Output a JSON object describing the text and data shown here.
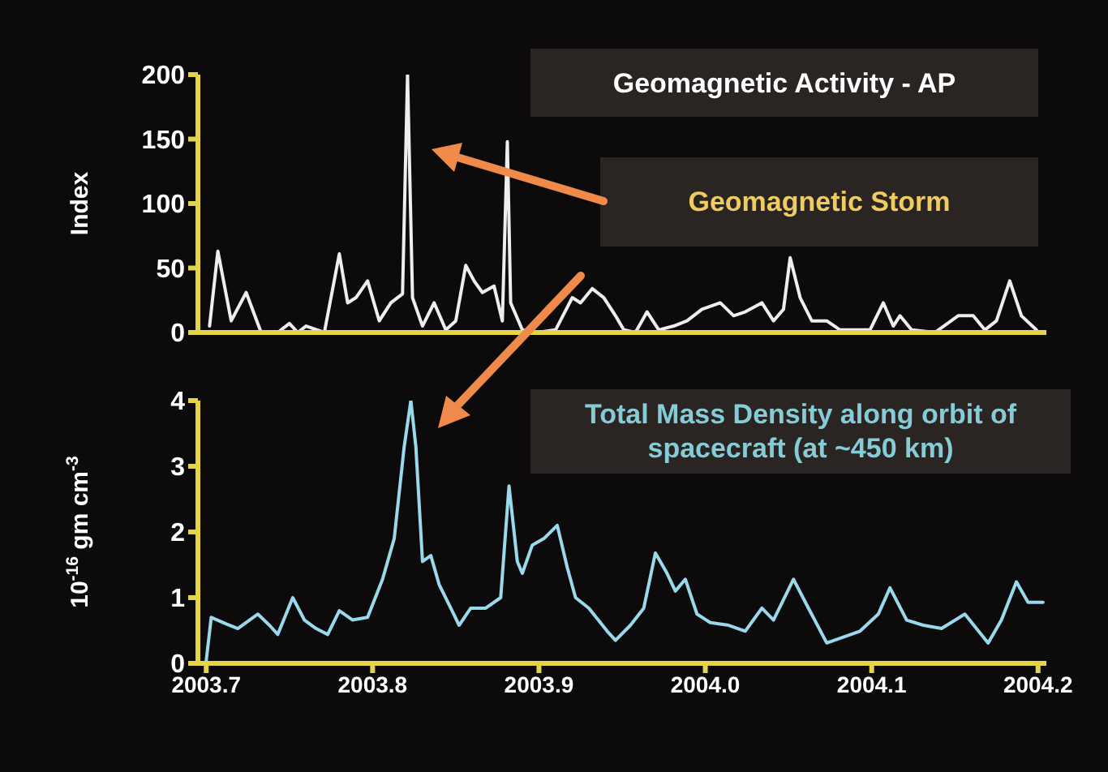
{
  "chart_data": [
    {
      "type": "line",
      "title": "Geomagnetic Activity - AP",
      "ylabel": "Index",
      "annotations": [
        "Geomagnetic Storm"
      ],
      "xlim": [
        2003.695,
        2004.205
      ],
      "ylim": [
        0,
        200
      ],
      "yticks": [
        0,
        50,
        100,
        150,
        200
      ],
      "tick_labels": "y",
      "grid": false,
      "legend": false,
      "marker": "none",
      "line_style": "solid",
      "series": [
        {
          "color": "#eeeeee",
          "x": [
            2003.702,
            2003.707,
            2003.715,
            2003.724,
            2003.733,
            2003.743,
            2003.75,
            2003.755,
            2003.76,
            2003.771,
            2003.78,
            2003.785,
            2003.79,
            2003.797,
            2003.804,
            2003.811,
            2003.818,
            2003.821,
            2003.824,
            2003.83,
            2003.837,
            2003.844,
            2003.85,
            2003.856,
            2003.861,
            2003.866,
            2003.873,
            2003.878,
            2003.881,
            2003.883,
            2003.89,
            2003.899,
            2003.91,
            2003.92,
            2003.925,
            2003.932,
            2003.939,
            2003.946,
            2003.951,
            2003.958,
            2003.965,
            2003.972,
            2003.981,
            2003.989,
            2003.998,
            2004.009,
            2004.017,
            2004.024,
            2004.034,
            2004.041,
            2004.047,
            2004.051,
            2004.057,
            2004.064,
            2004.073,
            2004.081,
            2004.09,
            2004.099,
            2004.107,
            2004.113,
            2004.117,
            2004.124,
            2004.138,
            2004.152,
            2004.161,
            2004.168,
            2004.175,
            2004.183,
            2004.19,
            2004.199
          ],
          "values": [
            5,
            63,
            9,
            31,
            0,
            0,
            7,
            0,
            5,
            0,
            61,
            23,
            27,
            40,
            9,
            23,
            30,
            200,
            27,
            5,
            23,
            2,
            9,
            52,
            40,
            31,
            36,
            9,
            148,
            23,
            2,
            0,
            2,
            27,
            23,
            34,
            27,
            13,
            2,
            0,
            16,
            2,
            5,
            9,
            18,
            23,
            13,
            16,
            23,
            9,
            18,
            58,
            27,
            9,
            9,
            2,
            2,
            2,
            23,
            5,
            13,
            2,
            0,
            13,
            13,
            2,
            9,
            40,
            13,
            2
          ]
        }
      ]
    },
    {
      "type": "line",
      "title": "Total Mass Density along orbit of spacecraft (at ~450 km)",
      "ylabel": "10$^{-16}$ gm cm$^{-3}$",
      "xlim": [
        2003.695,
        2004.205
      ],
      "xticks": [
        2003.7,
        2003.8,
        2003.9,
        {
          "value": 2004,
          "label": "2004.0"
        },
        2004.1,
        2004.2
      ],
      "ylim": [
        0,
        4
      ],
      "yticks": [
        0,
        1,
        2,
        3,
        4
      ],
      "grid": false,
      "legend": false,
      "marker": "none",
      "line_style": "solid",
      "series": [
        {
          "color": "#9ad8ec",
          "x": [
            2003.7,
            2003.703,
            2003.712,
            2003.719,
            2003.731,
            2003.738,
            2003.743,
            2003.752,
            2003.759,
            2003.766,
            2003.773,
            2003.78,
            2003.788,
            2003.797,
            2003.806,
            2003.813,
            2003.819,
            2003.823,
            2003.826,
            2003.83,
            2003.835,
            2003.84,
            2003.847,
            2003.852,
            2003.859,
            2003.868,
            2003.877,
            2003.882,
            2003.887,
            2003.89,
            2003.896,
            2003.903,
            2003.911,
            2003.917,
            2003.922,
            2003.93,
            2003.941,
            2003.946,
            2003.955,
            2003.963,
            2003.97,
            2003.977,
            2003.982,
            2003.988,
            2003.995,
            2004.003,
            2004.014,
            2004.024,
            2004.034,
            2004.041,
            2004.053,
            2004.062,
            2004.073,
            2004.083,
            2004.093,
            2004.104,
            2004.111,
            2004.121,
            2004.131,
            2004.142,
            2004.156,
            2004.17,
            2004.178,
            2004.187,
            2004.194,
            2004.203
          ],
          "values": [
            0.04,
            0.7,
            0.6,
            0.53,
            0.75,
            0.58,
            0.44,
            1.0,
            0.66,
            0.53,
            0.44,
            0.8,
            0.66,
            0.7,
            1.28,
            1.9,
            3.3,
            4.0,
            3.3,
            1.55,
            1.64,
            1.2,
            0.84,
            0.58,
            0.84,
            0.84,
            1.0,
            2.7,
            1.55,
            1.37,
            1.8,
            1.9,
            2.1,
            1.46,
            1.0,
            0.84,
            0.49,
            0.35,
            0.58,
            0.84,
            1.68,
            1.37,
            1.1,
            1.28,
            0.75,
            0.62,
            0.58,
            0.49,
            0.84,
            0.66,
            1.28,
            0.84,
            0.31,
            0.4,
            0.49,
            0.75,
            1.15,
            0.66,
            0.58,
            0.53,
            0.75,
            0.31,
            0.66,
            1.24,
            0.93,
            0.93
          ]
        }
      ]
    }
  ]
}
